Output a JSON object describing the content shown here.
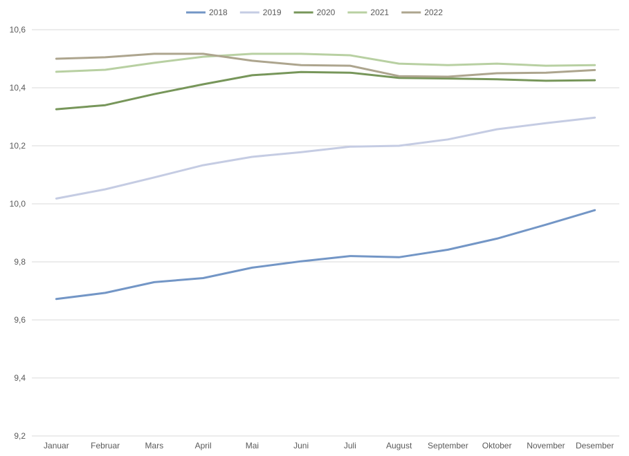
{
  "chart_data": {
    "type": "line",
    "title": "",
    "xlabel": "",
    "ylabel": "",
    "categories": [
      "Januar",
      "Februar",
      "Mars",
      "April",
      "Mai",
      "Juni",
      "Juli",
      "August",
      "September",
      "Oktober",
      "November",
      "Desember"
    ],
    "ylim": [
      9.2,
      10.6
    ],
    "yticks": [
      "9,2",
      "9,4",
      "9,6",
      "9,8",
      "10,0",
      "10,2",
      "10,4",
      "10,6"
    ],
    "grid": true,
    "legend_position": "top",
    "series": [
      {
        "name": "2018",
        "color": "#7396c6",
        "values": [
          9.672,
          9.693,
          9.73,
          9.744,
          9.78,
          9.802,
          9.82,
          9.816,
          9.842,
          9.88,
          9.928,
          9.978
        ]
      },
      {
        "name": "2019",
        "color": "#c5cce3",
        "values": [
          10.018,
          10.05,
          10.091,
          10.133,
          10.162,
          10.178,
          10.197,
          10.2,
          10.222,
          10.257,
          10.278,
          10.297
        ]
      },
      {
        "name": "2020",
        "color": "#77965a",
        "values": [
          10.326,
          10.34,
          10.378,
          10.412,
          10.443,
          10.454,
          10.452,
          10.434,
          10.432,
          10.429,
          10.424,
          10.426
        ]
      },
      {
        "name": "2021",
        "color": "#b8d0a2",
        "values": [
          10.455,
          10.462,
          10.486,
          10.507,
          10.517,
          10.517,
          10.512,
          10.483,
          10.478,
          10.483,
          10.476,
          10.478
        ]
      },
      {
        "name": "2022",
        "color": "#ada58e",
        "values": [
          10.5,
          10.505,
          10.517,
          10.517,
          10.493,
          10.478,
          10.476,
          10.44,
          10.438,
          10.45,
          10.452,
          10.461
        ]
      }
    ]
  }
}
